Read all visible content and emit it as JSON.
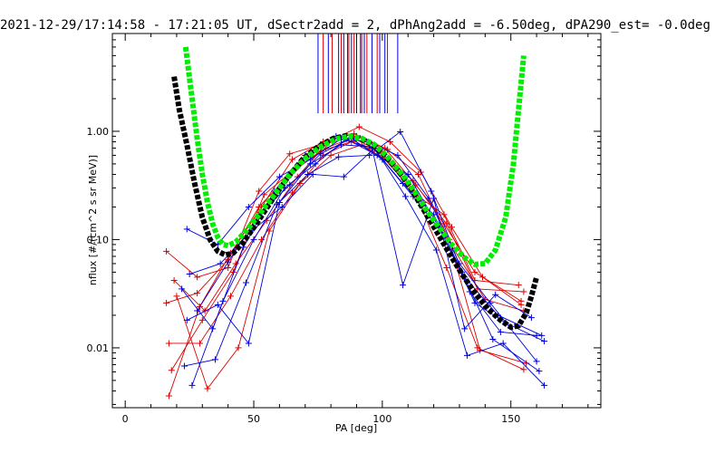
{
  "title": "2021-12-29/17:14:58 - 17:21:05 UT, dSectr2add = 2, dPhAng2add = -6.50deg, dPA290_est=  -0.0deg",
  "colors": {
    "red": "#dd0000",
    "blue": "#0000dd",
    "green": "#00ee00",
    "black": "#000000"
  },
  "chart_data": {
    "type": "line",
    "title": "2021-12-29/17:14:58 - 17:21:05 UT, dSectr2add = 2, dPhAng2add = -6.50deg, dPA290_est=  -0.0deg",
    "xlabel": "PA [deg]",
    "ylabel": "nflux [#/(cm^2 s sr MeV)]",
    "xlim": [
      -5,
      185
    ],
    "ylim": [
      0.0028,
      8.0
    ],
    "y_scale": "log",
    "x_ticks": [
      0,
      50,
      100,
      150
    ],
    "x_tick_labels": [
      "0",
      "50",
      "100",
      "150"
    ],
    "y_ticks": [
      0.01,
      0.1,
      1.0
    ],
    "y_tick_labels": [
      "0.01",
      "0.10",
      "1.00"
    ],
    "grid": false,
    "legend": "none",
    "series": [
      {
        "color": "green",
        "style": "thick-dashed",
        "points": [
          [
            23.5,
            6.0
          ],
          [
            26,
            2.0
          ],
          [
            28,
            0.85
          ],
          [
            30,
            0.4
          ],
          [
            32,
            0.22
          ],
          [
            34,
            0.14
          ],
          [
            36,
            0.105
          ],
          [
            38,
            0.09
          ],
          [
            40,
            0.088
          ],
          [
            43,
            0.095
          ],
          [
            47,
            0.12
          ],
          [
            52,
            0.17
          ],
          [
            58,
            0.26
          ],
          [
            64,
            0.4
          ],
          [
            70,
            0.56
          ],
          [
            76,
            0.72
          ],
          [
            82,
            0.85
          ],
          [
            87,
            0.9
          ],
          [
            92,
            0.86
          ],
          [
            97,
            0.75
          ],
          [
            102,
            0.58
          ],
          [
            107,
            0.42
          ],
          [
            112,
            0.29
          ],
          [
            117,
            0.19
          ],
          [
            122,
            0.13
          ],
          [
            127,
            0.09
          ],
          [
            132,
            0.068
          ],
          [
            136,
            0.059
          ],
          [
            140,
            0.06
          ],
          [
            144,
            0.08
          ],
          [
            148,
            0.16
          ],
          [
            151,
            0.5
          ],
          [
            153,
            1.6
          ],
          [
            155,
            5.0
          ]
        ]
      },
      {
        "color": "black",
        "style": "thick-dashed",
        "points": [
          [
            19,
            3.2
          ],
          [
            21,
            1.6
          ],
          [
            24,
            0.75
          ],
          [
            27,
            0.33
          ],
          [
            30,
            0.16
          ],
          [
            33,
            0.1
          ],
          [
            36,
            0.078
          ],
          [
            39,
            0.072
          ],
          [
            42,
            0.075
          ],
          [
            46,
            0.095
          ],
          [
            51,
            0.14
          ],
          [
            57,
            0.23
          ],
          [
            63,
            0.37
          ],
          [
            69,
            0.55
          ],
          [
            75,
            0.72
          ],
          [
            81,
            0.86
          ],
          [
            86,
            0.91
          ],
          [
            91,
            0.87
          ],
          [
            96,
            0.76
          ],
          [
            101,
            0.6
          ],
          [
            106,
            0.44
          ],
          [
            111,
            0.3
          ],
          [
            116,
            0.19
          ],
          [
            121,
            0.12
          ],
          [
            126,
            0.075
          ],
          [
            131,
            0.048
          ],
          [
            136,
            0.032
          ],
          [
            141,
            0.023
          ],
          [
            146,
            0.018
          ],
          [
            150,
            0.0155
          ],
          [
            153,
            0.016
          ],
          [
            156,
            0.021
          ],
          [
            158,
            0.03
          ],
          [
            160,
            0.045
          ]
        ]
      },
      {
        "color": "red",
        "style": "line",
        "points": [
          [
            16,
            0.026
          ],
          [
            28,
            0.032
          ],
          [
            40,
            0.065
          ],
          [
            52,
            0.2
          ],
          [
            64,
            0.4
          ],
          [
            76,
            0.66
          ],
          [
            88,
            0.8
          ],
          [
            100,
            0.62
          ],
          [
            112,
            0.35
          ],
          [
            124,
            0.14
          ],
          [
            136,
            0.05
          ],
          [
            154,
            0.027
          ]
        ]
      },
      {
        "color": "red",
        "style": "line",
        "points": [
          [
            17,
            0.011
          ],
          [
            29,
            0.011
          ],
          [
            41,
            0.03
          ],
          [
            53,
            0.1
          ],
          [
            65,
            0.27
          ],
          [
            77,
            0.6
          ],
          [
            89,
            0.82
          ],
          [
            101,
            0.55
          ],
          [
            113,
            0.26
          ],
          [
            125,
            0.055
          ],
          [
            137,
            0.01
          ],
          [
            155,
            0.0063
          ]
        ]
      },
      {
        "color": "red",
        "style": "line",
        "points": [
          [
            18,
            0.0062
          ],
          [
            30,
            0.018
          ],
          [
            42,
            0.05
          ],
          [
            54,
            0.26
          ],
          [
            66,
            0.45
          ],
          [
            78,
            0.7
          ],
          [
            90,
            0.9
          ],
          [
            102,
            0.68
          ],
          [
            114,
            0.4
          ],
          [
            126,
            0.1
          ],
          [
            138,
            0.0095
          ],
          [
            156,
            0.0072
          ]
        ]
      },
      {
        "color": "red",
        "style": "line",
        "points": [
          [
            19,
            0.042
          ],
          [
            31,
            0.022
          ],
          [
            43,
            0.06
          ],
          [
            55,
            0.15
          ],
          [
            67,
            0.38
          ],
          [
            79,
            0.8
          ],
          [
            91,
            1.1
          ],
          [
            103,
            0.8
          ],
          [
            115,
            0.42
          ],
          [
            127,
            0.13
          ],
          [
            139,
            0.045
          ],
          [
            154,
            0.025
          ]
        ]
      },
      {
        "color": "red",
        "style": "line",
        "points": [
          [
            17,
            0.0036
          ],
          [
            29,
            0.024
          ],
          [
            41,
            0.075
          ],
          [
            53,
            0.2
          ],
          [
            65,
            0.55
          ],
          [
            77,
            0.8
          ],
          [
            89,
            0.95
          ],
          [
            101,
            0.7
          ],
          [
            113,
            0.32
          ],
          [
            125,
            0.14
          ],
          [
            137,
            0.035
          ],
          [
            155,
            0.033
          ]
        ]
      },
      {
        "color": "red",
        "style": "line",
        "points": [
          [
            16,
            0.078
          ],
          [
            28,
            0.045
          ],
          [
            40,
            0.055
          ],
          [
            52,
            0.28
          ],
          [
            64,
            0.62
          ],
          [
            76,
            0.75
          ],
          [
            88,
            0.88
          ],
          [
            100,
            0.64
          ],
          [
            112,
            0.27
          ],
          [
            124,
            0.17
          ],
          [
            136,
            0.042
          ],
          [
            153,
            0.038
          ]
        ]
      },
      {
        "color": "red",
        "style": "line",
        "points": [
          [
            20,
            0.03
          ],
          [
            32,
            0.0042
          ],
          [
            44,
            0.01
          ],
          [
            56,
            0.12
          ],
          [
            68,
            0.33
          ],
          [
            80,
            0.6
          ],
          [
            92,
            0.75
          ],
          [
            104,
            0.5
          ],
          [
            116,
            0.22
          ],
          [
            128,
            0.08
          ],
          [
            140,
            0.028
          ],
          [
            155,
            0.022
          ]
        ]
      },
      {
        "color": "blue",
        "style": "line",
        "points": [
          [
            24,
            0.125
          ],
          [
            36,
            0.09
          ],
          [
            48,
            0.2
          ],
          [
            60,
            0.38
          ],
          [
            72,
            0.55
          ],
          [
            84,
            0.85
          ],
          [
            96,
            0.7
          ],
          [
            108,
            0.038
          ],
          [
            120,
            0.24
          ],
          [
            132,
            0.015
          ],
          [
            144,
            0.031
          ],
          [
            158,
            0.019
          ]
        ]
      },
      {
        "color": "blue",
        "style": "line",
        "points": [
          [
            22,
            0.035
          ],
          [
            34,
            0.015
          ],
          [
            46,
            0.085
          ],
          [
            58,
            0.28
          ],
          [
            70,
            0.6
          ],
          [
            82,
            0.9
          ],
          [
            94,
            0.8
          ],
          [
            106,
            0.6
          ],
          [
            118,
            0.24
          ],
          [
            130,
            0.06
          ],
          [
            142,
            0.026
          ],
          [
            160,
            0.0075
          ]
        ]
      },
      {
        "color": "blue",
        "style": "line",
        "points": [
          [
            23,
            0.0068
          ],
          [
            35,
            0.0078
          ],
          [
            47,
            0.04
          ],
          [
            59,
            0.21
          ],
          [
            71,
            0.4
          ],
          [
            83,
            0.58
          ],
          [
            95,
            0.6
          ],
          [
            107,
            0.99
          ],
          [
            119,
            0.28
          ],
          [
            131,
            0.05
          ],
          [
            143,
            0.012
          ],
          [
            161,
            0.0061
          ]
        ]
      },
      {
        "color": "blue",
        "style": "line",
        "points": [
          [
            26,
            0.0045
          ],
          [
            38,
            0.027
          ],
          [
            50,
            0.1
          ],
          [
            62,
            0.3
          ],
          [
            74,
            0.5
          ],
          [
            86,
            0.85
          ],
          [
            98,
            0.6
          ],
          [
            110,
            0.4
          ],
          [
            122,
            0.13
          ],
          [
            134,
            0.033
          ],
          [
            146,
            0.014
          ],
          [
            160,
            0.013
          ]
        ]
      },
      {
        "color": "blue",
        "style": "line",
        "points": [
          [
            25,
            0.048
          ],
          [
            37,
            0.06
          ],
          [
            49,
            0.12
          ],
          [
            61,
            0.2
          ],
          [
            73,
            0.4
          ],
          [
            85,
            0.38
          ],
          [
            97,
            0.7
          ],
          [
            109,
            0.25
          ],
          [
            121,
            0.08
          ],
          [
            133,
            0.0085
          ],
          [
            147,
            0.011
          ],
          [
            163,
            0.0045
          ]
        ]
      },
      {
        "color": "blue",
        "style": "line",
        "points": [
          [
            24,
            0.018
          ],
          [
            36,
            0.025
          ],
          [
            48,
            0.011
          ],
          [
            60,
            0.22
          ],
          [
            72,
            0.5
          ],
          [
            84,
            0.75
          ],
          [
            96,
            0.72
          ],
          [
            108,
            0.33
          ],
          [
            120,
            0.17
          ],
          [
            132,
            0.045
          ],
          [
            145,
            0.02
          ],
          [
            162,
            0.013
          ]
        ]
      },
      {
        "color": "blue",
        "style": "line",
        "points": [
          [
            28,
            0.022
          ],
          [
            40,
            0.062
          ],
          [
            52,
            0.17
          ],
          [
            64,
            0.32
          ],
          [
            76,
            0.62
          ],
          [
            88,
            0.86
          ],
          [
            100,
            0.55
          ],
          [
            112,
            0.25
          ],
          [
            124,
            0.11
          ],
          [
            136,
            0.026
          ],
          [
            148,
            0.017
          ],
          [
            163,
            0.0115
          ]
        ]
      }
    ],
    "vertical_ticks": [
      {
        "color": "blue",
        "x": [
          75,
          79,
          83,
          85,
          86.5,
          88,
          90,
          91.5,
          93,
          96,
          99,
          101,
          106
        ]
      },
      {
        "color": "red",
        "x": [
          77,
          80.5,
          84,
          87,
          89,
          92,
          94,
          98,
          102
        ]
      }
    ]
  }
}
